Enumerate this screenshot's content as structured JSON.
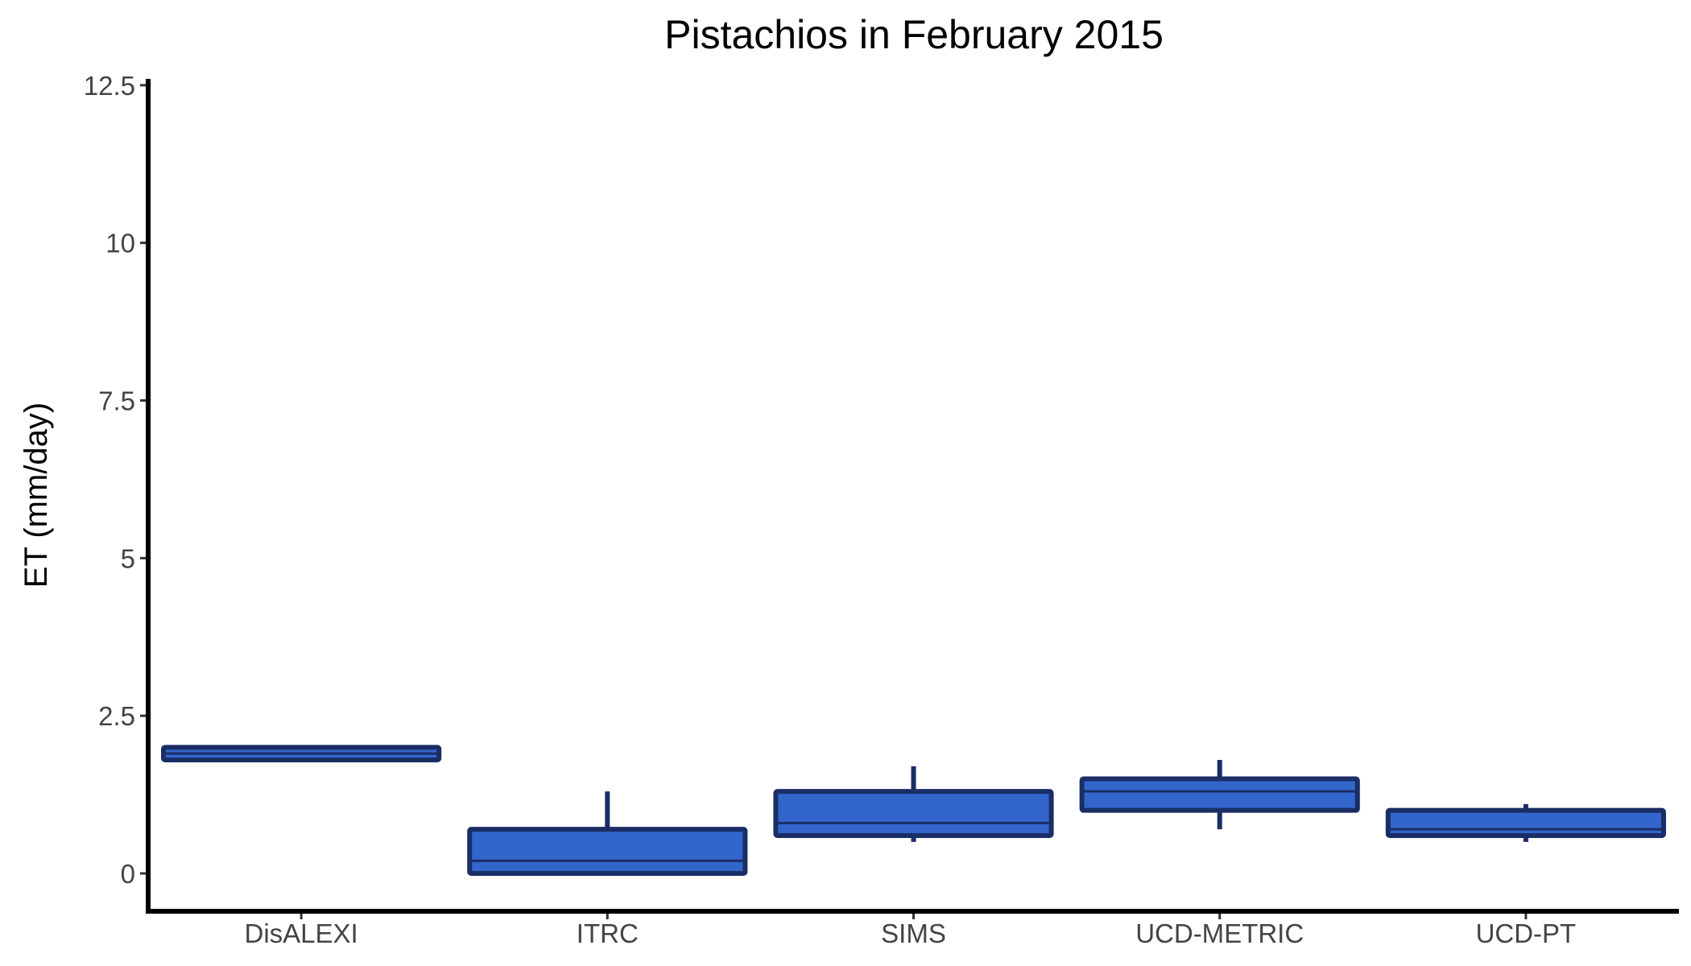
{
  "chart_data": {
    "type": "box",
    "title": "Pistachios in February 2015",
    "xlabel": "",
    "ylabel": "ET (mm/day)",
    "ylim": [
      -0.6,
      12.6
    ],
    "yticks": [
      0,
      2.5,
      5,
      7.5,
      10,
      12.5
    ],
    "ytick_labels": [
      "0",
      "2.5",
      "5",
      "7.5",
      "10",
      "12.5"
    ],
    "categories": [
      "DisALEXI",
      "ITRC",
      "SIMS",
      "UCD-METRIC",
      "UCD-PT"
    ],
    "boxes": [
      {
        "category": "DisALEXI",
        "whisker_low": 1.8,
        "q1": 1.8,
        "median": 1.9,
        "q3": 2.0,
        "whisker_high": 2.0
      },
      {
        "category": "ITRC",
        "whisker_low": 0.0,
        "q1": 0.0,
        "median": 0.2,
        "q3": 0.7,
        "whisker_high": 1.3
      },
      {
        "category": "SIMS",
        "whisker_low": 0.5,
        "q1": 0.6,
        "median": 0.8,
        "q3": 1.3,
        "whisker_high": 1.7
      },
      {
        "category": "UCD-METRIC",
        "whisker_low": 0.7,
        "q1": 1.0,
        "median": 1.3,
        "q3": 1.5,
        "whisker_high": 1.8
      },
      {
        "category": "UCD-PT",
        "whisker_low": 0.5,
        "q1": 0.6,
        "median": 0.7,
        "q3": 1.0,
        "whisker_high": 1.1
      }
    ],
    "fill_color": "#3366cc",
    "stroke_color": "#1a2e66",
    "grid": false,
    "legend": "none"
  }
}
